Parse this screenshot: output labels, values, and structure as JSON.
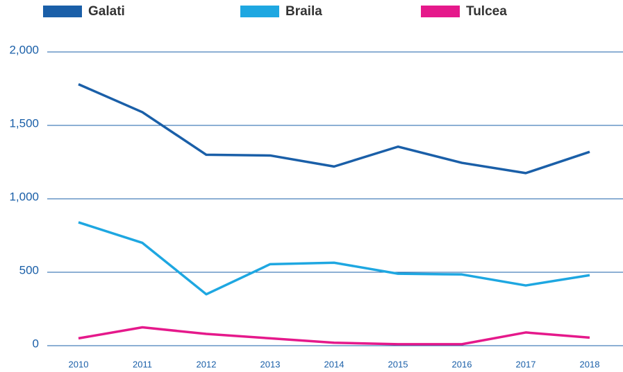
{
  "chart_data": {
    "type": "line",
    "categories": [
      "2010",
      "2011",
      "2012",
      "2013",
      "2014",
      "2015",
      "2016",
      "2017",
      "2018"
    ],
    "series": [
      {
        "name": "Galati",
        "color": "#1a5fa8",
        "values": [
          1780,
          1590,
          1300,
          1295,
          1220,
          1355,
          1245,
          1175,
          1320
        ]
      },
      {
        "name": "Braila",
        "color": "#1ea7e1",
        "values": [
          840,
          700,
          350,
          555,
          565,
          490,
          485,
          410,
          480
        ]
      },
      {
        "name": "Tulcea",
        "color": "#e5198b",
        "values": [
          50,
          125,
          80,
          50,
          20,
          10,
          10,
          90,
          55
        ]
      }
    ],
    "ylim": [
      0,
      2000
    ],
    "yticks": [
      0,
      500,
      {
        "value": 1000,
        "label": "1,000"
      },
      {
        "value": 1500,
        "label": "1,500"
      },
      {
        "value": 2000,
        "label": "2,000"
      }
    ],
    "grid": true,
    "legend": "top"
  }
}
